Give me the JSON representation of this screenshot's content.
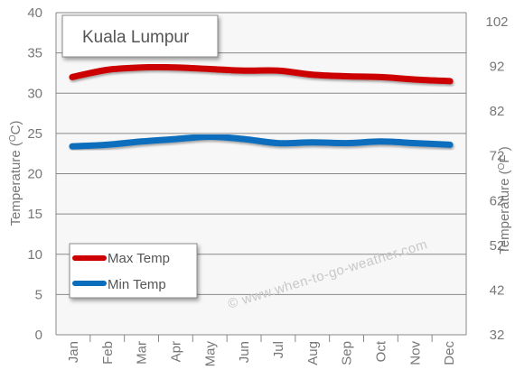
{
  "chart_data": {
    "type": "line",
    "title": "Kuala Lumpur",
    "categories": [
      "Jan",
      "Feb",
      "Mar",
      "Apr",
      "May",
      "Jun",
      "Jul",
      "Aug",
      "Sep",
      "Oct",
      "Nov",
      "Dec"
    ],
    "series": [
      {
        "name": "Max Temp",
        "color": "#cc0000",
        "values": [
          32.0,
          32.9,
          33.2,
          33.2,
          33.0,
          32.8,
          32.8,
          32.3,
          32.1,
          32.0,
          31.7,
          31.5
        ]
      },
      {
        "name": "Min Temp",
        "color": "#0a6ebd",
        "values": [
          23.4,
          23.6,
          24.0,
          24.3,
          24.6,
          24.3,
          23.8,
          23.9,
          23.8,
          24.0,
          23.8,
          23.6
        ]
      }
    ],
    "ylabel": "Temperature (OC)",
    "y2label": "Temperature (OF )",
    "ylim": [
      0,
      40
    ],
    "yticks": [
      "0",
      "5",
      "10",
      "15",
      "20",
      "25",
      "30",
      "35",
      "40"
    ],
    "y2lim": [
      32,
      104
    ],
    "y2ticks": [
      "32",
      "42",
      "52",
      "62",
      "72",
      "82",
      "92",
      "102"
    ],
    "grid": true,
    "legend_position": "bottom-left",
    "watermark": "© www.when-to-go-weather.com"
  }
}
